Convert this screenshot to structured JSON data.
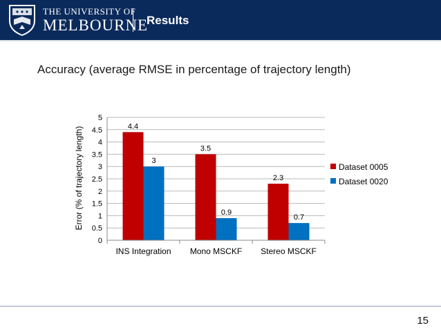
{
  "header": {
    "university_line1": "THE UNIVERSITY OF",
    "university_line2": "MELBOURNE",
    "title": "Results",
    "background_color": "#0b2a5c"
  },
  "slide": {
    "subtitle": "Accuracy (average RMSE in percentage of trajectory length)",
    "page_number": "15"
  },
  "chart_data": {
    "type": "bar",
    "title": "",
    "xlabel": "",
    "ylabel": "Error (% of trajectory length)",
    "categories": [
      "INS Integration",
      "Mono MSCKF",
      "Stereo MSCKF"
    ],
    "series": [
      {
        "name": "Dataset 0005",
        "values": [
          4.4,
          3.5,
          2.3
        ],
        "labels": [
          "4.4",
          "3.5",
          "2.3"
        ],
        "color": "#c00000"
      },
      {
        "name": "Dataset 0020",
        "values": [
          3,
          0.9,
          0.7
        ],
        "labels": [
          "3",
          "0.9",
          "0.7"
        ],
        "color": "#0070c0"
      }
    ],
    "ylim": [
      0,
      5
    ],
    "yticks": [
      "0",
      "0.5",
      "1",
      "1.5",
      "2",
      "2.5",
      "3",
      "3.5",
      "4",
      "4.5",
      "5"
    ],
    "grid": true,
    "legend_position": "right"
  }
}
